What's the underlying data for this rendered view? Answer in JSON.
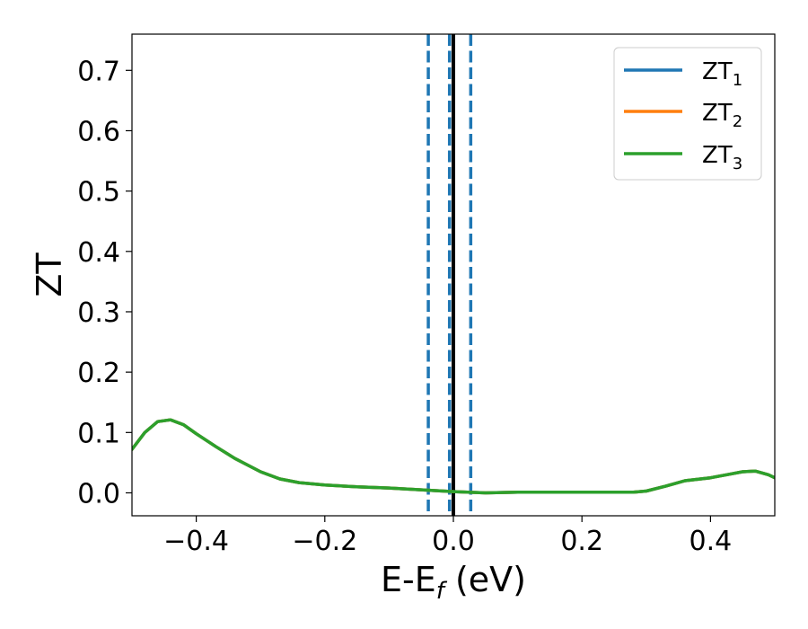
{
  "chart_data": {
    "type": "line",
    "title": "",
    "xlabel": "E-E",
    "xlabel_sub": "f",
    "xlabel_unit": " (eV)",
    "ylabel": "ZT",
    "xlim": [
      -0.5,
      0.5
    ],
    "ylim": [
      -0.038,
      0.76
    ],
    "xticks": [
      -0.4,
      -0.2,
      0.0,
      0.2,
      0.4
    ],
    "xtick_labels": [
      "−0.4",
      "−0.2",
      "0.0",
      "0.2",
      "0.4"
    ],
    "yticks": [
      0.0,
      0.1,
      0.2,
      0.3,
      0.4,
      0.5,
      0.6,
      0.7
    ],
    "ytick_labels": [
      "0.0",
      "0.1",
      "0.2",
      "0.3",
      "0.4",
      "0.5",
      "0.6",
      "0.7"
    ],
    "grid": false,
    "legend_position": "top-right",
    "series": [
      {
        "name": "ZT",
        "name_sub": "1",
        "color": "#1f77b4",
        "x": [
          -0.5,
          -0.48,
          -0.46,
          -0.44,
          -0.42,
          -0.4,
          -0.37,
          -0.34,
          -0.3,
          -0.27,
          -0.24,
          -0.2,
          -0.15,
          -0.1,
          -0.05,
          0.0,
          0.05,
          0.1,
          0.15,
          0.2,
          0.25,
          0.28,
          0.3,
          0.33,
          0.36,
          0.4,
          0.43,
          0.45,
          0.47,
          0.49,
          0.5
        ],
        "y": [
          0.072,
          0.1,
          0.118,
          0.121,
          0.113,
          0.098,
          0.077,
          0.057,
          0.035,
          0.023,
          0.017,
          0.013,
          0.01,
          0.008,
          0.005,
          0.002,
          0.0,
          0.001,
          0.001,
          0.001,
          0.001,
          0.001,
          0.003,
          0.011,
          0.02,
          0.025,
          0.031,
          0.035,
          0.036,
          0.03,
          0.025
        ]
      },
      {
        "name": "ZT",
        "name_sub": "2",
        "color": "#ff7f0e",
        "x": [
          -0.5,
          -0.48,
          -0.46,
          -0.44,
          -0.42,
          -0.4,
          -0.37,
          -0.34,
          -0.3,
          -0.27,
          -0.24,
          -0.2,
          -0.15,
          -0.1,
          -0.05,
          0.0,
          0.05,
          0.1,
          0.15,
          0.2,
          0.25,
          0.28,
          0.3,
          0.33,
          0.36,
          0.4,
          0.43,
          0.45,
          0.47,
          0.49,
          0.5
        ],
        "y": [
          0.072,
          0.1,
          0.118,
          0.121,
          0.113,
          0.098,
          0.077,
          0.057,
          0.035,
          0.023,
          0.017,
          0.013,
          0.01,
          0.008,
          0.005,
          0.002,
          0.0,
          0.001,
          0.001,
          0.001,
          0.001,
          0.001,
          0.003,
          0.011,
          0.02,
          0.025,
          0.031,
          0.035,
          0.036,
          0.03,
          0.025
        ]
      },
      {
        "name": "ZT",
        "name_sub": "3",
        "color": "#2ca02c",
        "x": [
          -0.5,
          -0.48,
          -0.46,
          -0.44,
          -0.42,
          -0.4,
          -0.37,
          -0.34,
          -0.3,
          -0.27,
          -0.24,
          -0.2,
          -0.15,
          -0.1,
          -0.05,
          0.0,
          0.05,
          0.1,
          0.15,
          0.2,
          0.25,
          0.28,
          0.3,
          0.33,
          0.36,
          0.4,
          0.43,
          0.45,
          0.47,
          0.49,
          0.5
        ],
        "y": [
          0.072,
          0.1,
          0.118,
          0.121,
          0.113,
          0.098,
          0.077,
          0.057,
          0.035,
          0.023,
          0.017,
          0.013,
          0.01,
          0.008,
          0.005,
          0.002,
          0.0,
          0.001,
          0.001,
          0.001,
          0.001,
          0.001,
          0.003,
          0.011,
          0.02,
          0.025,
          0.031,
          0.035,
          0.036,
          0.03,
          0.025
        ]
      }
    ],
    "vlines": [
      {
        "x": -0.039,
        "color": "#1f77b4",
        "style": "dashed"
      },
      {
        "x": -0.006,
        "color": "#1f77b4",
        "style": "dashed"
      },
      {
        "x": 0.027,
        "color": "#1f77b4",
        "style": "dashed"
      },
      {
        "x": 0.0,
        "color": "#000000",
        "style": "solid"
      }
    ]
  }
}
